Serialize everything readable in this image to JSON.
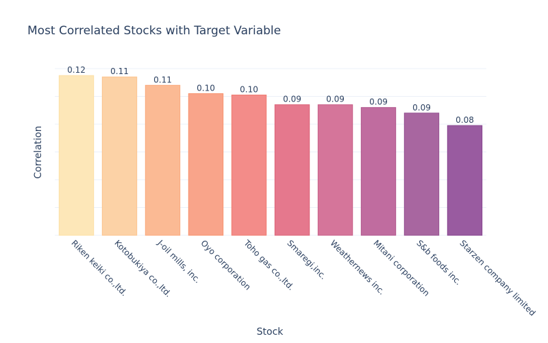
{
  "chart_data": {
    "type": "bar",
    "title": "Most Correlated Stocks with Target Variable",
    "xlabel": "Stock",
    "ylabel": "Correlation",
    "categories": [
      "Riken keiki co.,ltd.",
      "Kotobukiya co.,ltd.",
      "J-oil mills, inc.",
      "Oyo corporation",
      "Toho gas co.,ltd.",
      "Smaregi,inc.",
      "Weathernews inc.",
      "Mitani corporation",
      "S&b foods inc.",
      "Starzen company limited"
    ],
    "values": [
      0.115,
      0.114,
      0.108,
      0.102,
      0.101,
      0.094,
      0.094,
      0.092,
      0.088,
      0.079
    ],
    "data_labels": [
      "0.12",
      "0.11",
      "0.11",
      "0.10",
      "0.10",
      "0.09",
      "0.09",
      "0.09",
      "0.09",
      "0.08"
    ],
    "ylim": [
      0,
      0.12
    ],
    "yticks": [
      0,
      0.02,
      0.04,
      0.06,
      0.08,
      0.1,
      0.12
    ],
    "grid": true,
    "legend": "none",
    "colors": {
      "fill": [
        "#fde7b8",
        "#fcd2a6",
        "#fbba94",
        "#f9a48a",
        "#f38c89",
        "#e5788d",
        "#d5759a",
        "#c06c9f",
        "#a866a0",
        "#995ba0"
      ],
      "stroke": [
        "#fde0a5",
        "#fcc48e",
        "#fbaa7e",
        "#f8946f",
        "#ef7c70",
        "#dc6377",
        "#c86088",
        "#b0568d",
        "#945091",
        "#85438e"
      ],
      "text": "#2a3f5f",
      "grid": "#ebf0f8"
    }
  }
}
